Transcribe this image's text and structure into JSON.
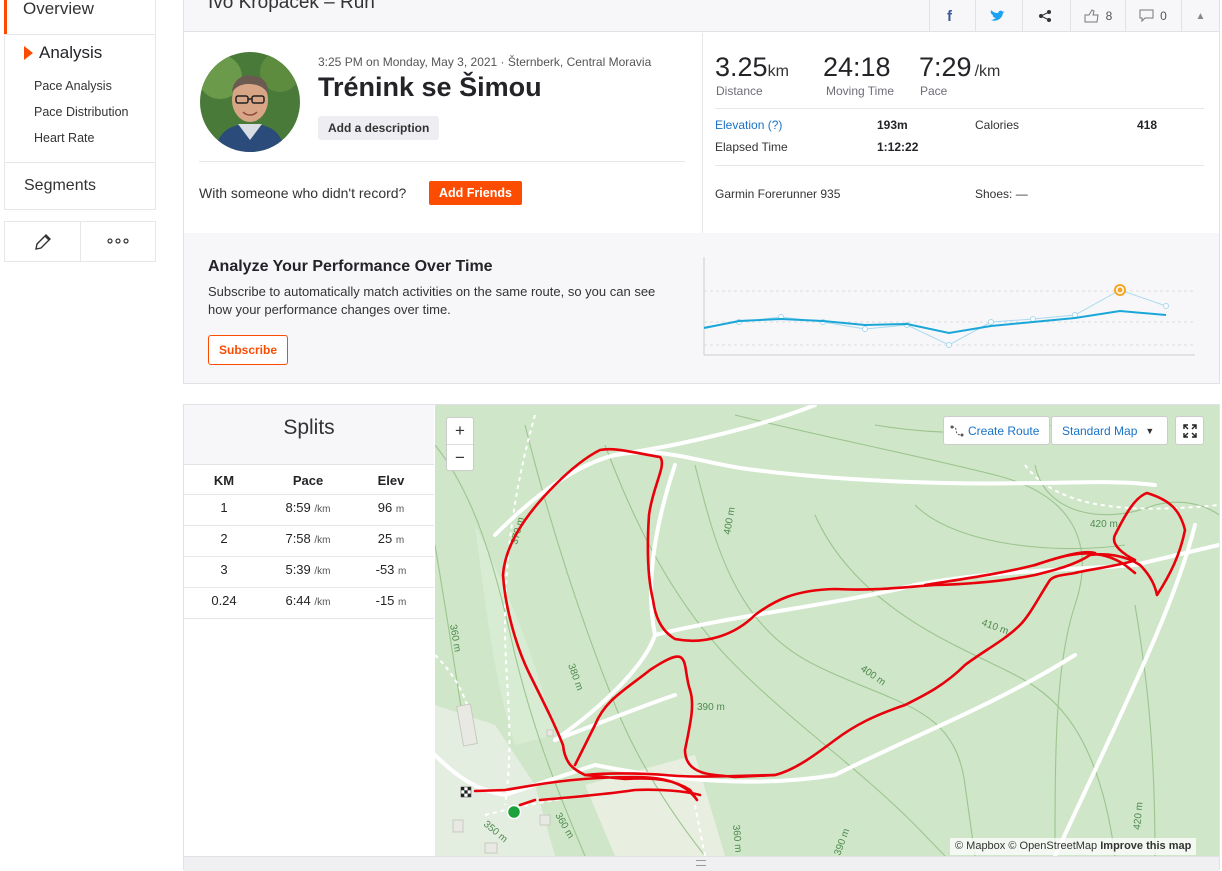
{
  "sidebar": {
    "overview": "Overview",
    "analysis": "Analysis",
    "sub_items": [
      "Pace Analysis",
      "Pace Distribution",
      "Heart Rate"
    ],
    "segments": "Segments"
  },
  "header": {
    "title": "Ivo Kropáček – Run",
    "kudos_count": "8",
    "comments_count": "0"
  },
  "activity": {
    "meta": "3:25 PM on Monday, May 3, 2021 · Šternberk, Central Moravia",
    "title": "Trénink se Šimou",
    "description_button": "Add a description",
    "friends_prompt": "With someone who didn't record?",
    "friends_button": "Add Friends"
  },
  "stats": {
    "distance": {
      "value": "3.25",
      "unit": "km",
      "label": "Distance"
    },
    "moving_time": {
      "value": "24:18",
      "label": "Moving Time"
    },
    "pace": {
      "value": "7:29",
      "unit": "/km",
      "label": "Pace"
    },
    "elevation_label": "Elevation (?)",
    "elevation_value": "193m",
    "calories_label": "Calories",
    "calories_value": "418",
    "elapsed_label": "Elapsed Time",
    "elapsed_value": "1:12:22",
    "device": "Garmin Forerunner 935",
    "shoes_label": "Shoes: —"
  },
  "performance": {
    "title": "Analyze Your Performance Over Time",
    "text": "Subscribe to automatically match activities on the same route, so you can see how your performance changes over time.",
    "button": "Subscribe"
  },
  "splits": {
    "title": "Splits",
    "headers": [
      "KM",
      "Pace",
      "Elev"
    ],
    "rows": [
      {
        "km": "1",
        "pace": "8:59",
        "pace_unit": "/km",
        "elev": "96",
        "elev_unit": "m"
      },
      {
        "km": "2",
        "pace": "7:58",
        "pace_unit": "/km",
        "elev": "25",
        "elev_unit": "m"
      },
      {
        "km": "3",
        "pace": "5:39",
        "pace_unit": "/km",
        "elev": "-53",
        "elev_unit": "m"
      },
      {
        "km": "0.24",
        "pace": "6:44",
        "pace_unit": "/km",
        "elev": "-15",
        "elev_unit": "m"
      }
    ]
  },
  "map": {
    "zoom_in": "+",
    "zoom_out": "−",
    "create_route": "Create Route",
    "map_type": "Standard Map",
    "attribution_1": "© Mapbox © OpenStreetMap",
    "attribution_2": "Improve this map",
    "contour_labels": [
      "370 m",
      "400 m",
      "420 m",
      "360 m",
      "410 m",
      "380 m",
      "390 m",
      "400 m",
      "350 m",
      "360 m",
      "360 m",
      "390 m",
      "420 m"
    ]
  },
  "colors": {
    "brand": "#fc4c02",
    "route": "#e8000b",
    "chart_line": "#1aa7d8"
  }
}
